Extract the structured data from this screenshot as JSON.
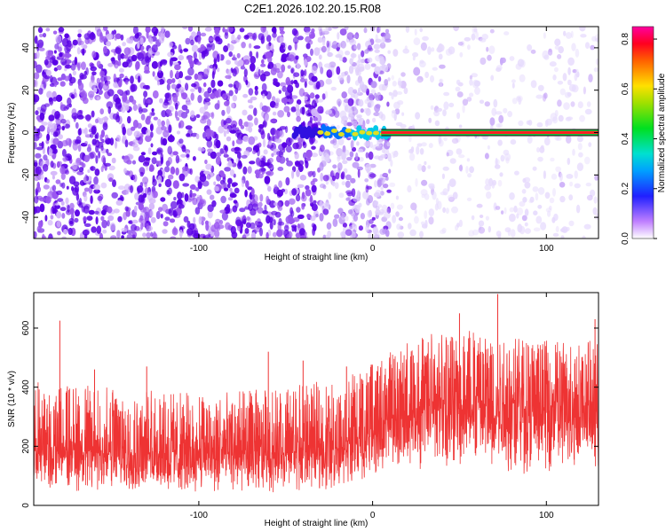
{
  "title": "C2E1.2026.102.20.15.R08",
  "chart_data": [
    {
      "type": "heatmap",
      "xlabel": "Height of straight line (km)",
      "ylabel": "Frequency (Hz)",
      "xlim": [
        -195,
        130
      ],
      "ylim": [
        -50,
        50
      ],
      "xticks": [
        -100,
        0,
        100
      ],
      "yticks": [
        -40,
        -20,
        0,
        20,
        40
      ],
      "colorbar": {
        "label": "Normalized spectral amplitude",
        "range": [
          0,
          0.85
        ],
        "ticks": [
          0.0,
          0.2,
          0.4,
          0.6,
          0.8
        ]
      },
      "features": {
        "dense_noise_x_range": [
          -195,
          -30
        ],
        "transition_noise_x_range": [
          -30,
          10
        ],
        "sparse_noise_x_range": [
          10,
          130
        ],
        "signal_line_frequency": 0,
        "signal_line_x_range": [
          5,
          130
        ],
        "signal_line_amplitude": 0.8
      }
    },
    {
      "type": "line",
      "xlabel": "Height of straight line (km)",
      "ylabel": "SNR (10 * v/v)",
      "xlim": [
        -195,
        130
      ],
      "ylim": [
        0,
        720
      ],
      "xticks": [
        -100,
        0,
        100
      ],
      "yticks": [
        0,
        200,
        400,
        600
      ],
      "series": [
        {
          "color": "#ee3333",
          "envelope_x": [
            -195,
            -150,
            -100,
            -50,
            -20,
            0,
            20,
            40,
            60,
            80,
            100,
            130
          ],
          "envelope_low": [
            40,
            40,
            35,
            40,
            50,
            90,
            120,
            120,
            110,
            100,
            110,
            120
          ],
          "envelope_high": [
            420,
            400,
            380,
            400,
            430,
            480,
            560,
            600,
            620,
            580,
            560,
            560
          ],
          "median": [
            190,
            180,
            175,
            180,
            200,
            260,
            320,
            340,
            350,
            340,
            320,
            320
          ],
          "peaks": [
            [
              -180,
              625
            ],
            [
              -160,
              460
            ],
            [
              -130,
              470
            ],
            [
              -60,
              520
            ],
            [
              -40,
              490
            ],
            [
              -15,
              470
            ],
            [
              50,
              650
            ],
            [
              72,
              715
            ],
            [
              128,
              630
            ]
          ]
        }
      ]
    }
  ]
}
